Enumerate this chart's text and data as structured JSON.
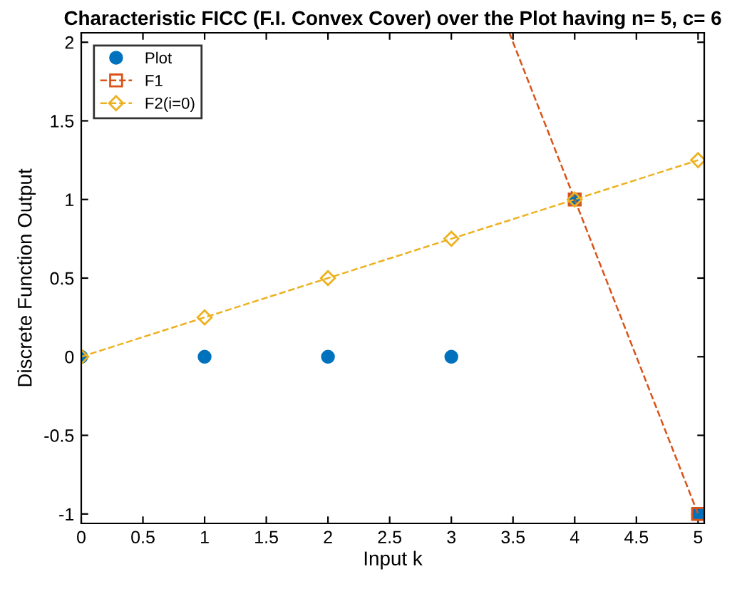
{
  "chart_data": {
    "type": "line",
    "title": "Characteristic FICC (F.I. Convex Cover) over the Plot having n= 5, c= 6",
    "xlabel": "Input k",
    "ylabel": "Discrete Function Output",
    "xlim": [
      0,
      5.05
    ],
    "ylim": [
      -1.06,
      2.06
    ],
    "xticks": [
      0,
      0.5,
      1,
      1.5,
      2,
      2.5,
      3,
      3.5,
      4,
      4.5,
      5
    ],
    "yticks": [
      -1,
      -0.5,
      0,
      0.5,
      1,
      1.5,
      2
    ],
    "grid": false,
    "legend": "top left",
    "series": [
      {
        "name": "Plot",
        "type": "scatter",
        "color": "#0072bd",
        "marker": "circle",
        "x": [
          0,
          1,
          2,
          3,
          4,
          5
        ],
        "values": [
          0,
          0,
          0,
          0,
          1,
          -1
        ]
      },
      {
        "name": "F1",
        "color": "#d95319",
        "marker": "square",
        "line_style": "dashed",
        "x": [
          4,
          5
        ],
        "values": [
          1,
          -1
        ]
      },
      {
        "color": "#d95319",
        "marker": "none",
        "line_style": "dashed",
        "x": [
          3.47,
          4
        ],
        "values": [
          2.06,
          1
        ]
      },
      {
        "name": "F2(i=0)",
        "color": "#edb120",
        "marker": "diamond",
        "line_style": "dashed",
        "x": [
          0,
          1,
          2,
          3,
          4,
          5
        ],
        "values": [
          0,
          0.25,
          0.5,
          0.75,
          1,
          1.25
        ]
      }
    ]
  }
}
